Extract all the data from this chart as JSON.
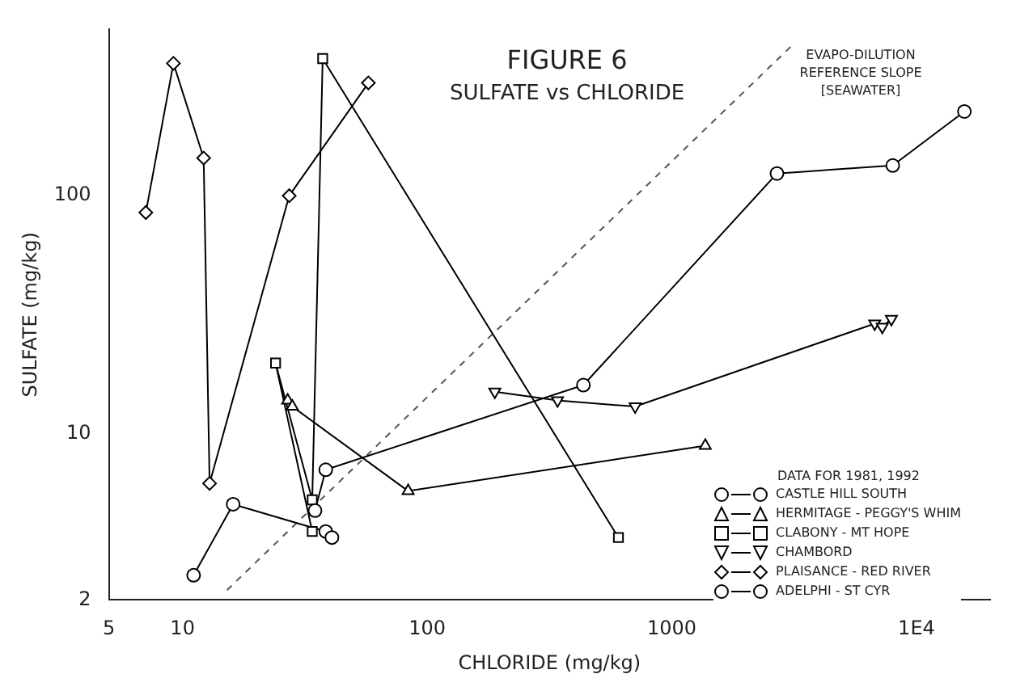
{
  "chart_data": {
    "type": "line",
    "title": "FIGURE 6",
    "subtitle": "SULFATE vs CHLORIDE",
    "xlabel": "CHLORIDE (mg/kg)",
    "ylabel": "SULFATE (mg/kg)",
    "legend_title": "DATA FOR 1981, 1992",
    "legend": "bottom right",
    "log": "xy",
    "grid": false,
    "xlim": [
      5,
      20000
    ],
    "xticks": [
      5,
      10,
      100,
      1000,
      {
        "value": 10000,
        "label": "1E4"
      }
    ],
    "ylim": [
      2,
      500
    ],
    "yticks": [
      2,
      10,
      100
    ],
    "annotations": [
      "EVAPO-DILUTION",
      "REFERENCE SLOPE",
      "[SEAWATER]"
    ],
    "series": [
      {
        "name": "CASTLE HILL SOUTH",
        "color": "#000000",
        "marker": "circle",
        "x": [
          34.8,
          38.5,
          435,
          2690,
          8000,
          15700
        ],
        "values": [
          4.75,
          7.05,
          16,
          124,
          134,
          226
        ]
      },
      {
        "name": "HERMITAGE - PEGGY'S WHIM",
        "color": "#000000",
        "marker": "triangle",
        "x": [
          26.9,
          28.1,
          83.6,
          1370
        ],
        "values": [
          13.8,
          13.0,
          5.74,
          8.9
        ]
      },
      {
        "name": "CLABONY - MT HOPE",
        "color": "#000000",
        "marker": "square",
        "x": [
          33.9,
          24.0,
          33.9,
          37.4,
          605
        ],
        "values": [
          3.88,
          19.8,
          5.27,
          377,
          3.66
        ]
      },
      {
        "name": "CHAMBORD",
        "color": "#000000",
        "marker": "triangle-down",
        "x": [
          189,
          341,
          708,
          6750,
          7250,
          7900
        ],
        "values": [
          15.0,
          13.8,
          13.0,
          29.0,
          28.1,
          30.3
        ]
      },
      {
        "name": "PLAISANCE - RED RIVER",
        "color": "#000000",
        "marker": "diamond",
        "x": [
          7.08,
          9.18,
          12.2,
          12.9,
          27.3,
          57.5
        ],
        "values": [
          85,
          360,
          144,
          6.18,
          100,
          298
        ]
      },
      {
        "name": "ADELPHI - ST CYR",
        "color": "#000000",
        "marker": "circle",
        "x": [
          11.1,
          16.1,
          38.5,
          40.8
        ],
        "values": [
          2.54,
          5.05,
          3.88,
          3.66
        ]
      },
      {
        "color": "#555555",
        "marker": "none",
        "line_style": "dashed",
        "x": [
          15.2,
          3150
        ],
        "values": [
          2.2,
          435
        ]
      }
    ]
  }
}
